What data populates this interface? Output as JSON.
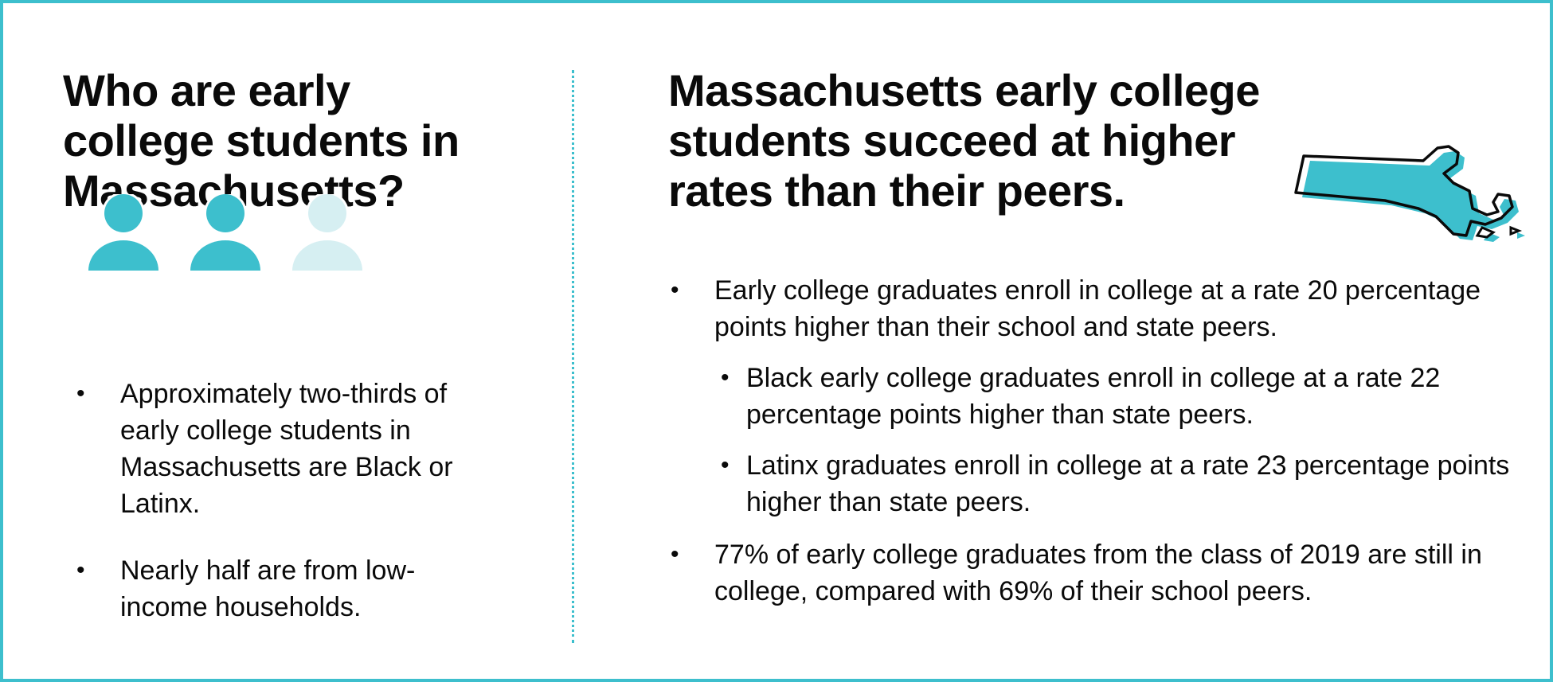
{
  "colors": {
    "accent": "#3dbfcd",
    "accent_light": "#d6eff2",
    "text": "#0a0a0a"
  },
  "left": {
    "heading_lines": [
      "Who are early",
      "college students in",
      "Massachusetts?"
    ],
    "people_icons": [
      {
        "icon": "person-icon",
        "shade": "filled"
      },
      {
        "icon": "person-icon",
        "shade": "filled"
      },
      {
        "icon": "person-icon",
        "shade": "light"
      }
    ],
    "bullets": [
      "Approximately two-thirds of early college students in Massachusetts are Black or Latinx.",
      "Nearly half are from low-income households."
    ]
  },
  "right": {
    "heading_lines": [
      "Massachusetts early college",
      "students succeed at higher",
      "rates than their peers."
    ],
    "map_icon": "massachusetts-map-icon",
    "bullets": [
      {
        "text": "Early college graduates enroll in college at a rate 20 percentage points higher than their school and state peers.",
        "sub": [
          "Black early college graduates enroll in college at a rate 22 percentage points higher than state peers.",
          "Latinx graduates enroll in college at a rate 23 percentage points higher than state peers."
        ]
      },
      {
        "text": "77% of early college graduates from the class of 2019 are still in college, compared with 69% of their school peers.",
        "sub": []
      }
    ]
  }
}
